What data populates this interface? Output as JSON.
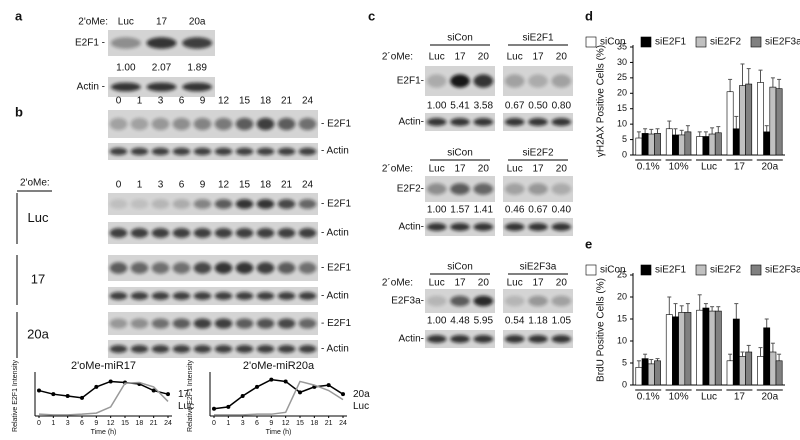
{
  "panel_a": {
    "label": "a",
    "treatment_label": "2'oMe:",
    "lanes": [
      "Luc",
      "17",
      "20a"
    ],
    "blot_labels": [
      "E2F1 -",
      "Actin -"
    ],
    "quantification": [
      "1.00",
      "2.07",
      "1.89"
    ]
  },
  "panel_b": {
    "label": "b",
    "time_points": [
      "0",
      "1",
      "3",
      "6",
      "9",
      "12",
      "15",
      "18",
      "21",
      "24"
    ],
    "top_blot_labels": [
      "- E2F1",
      "- Actin"
    ],
    "treatment_label": "2'oMe:",
    "groups": [
      {
        "name": "Luc",
        "blot_labels": [
          "- E2F1",
          "- Actin"
        ]
      },
      {
        "name": "17",
        "blot_labels": [
          "- E2F1",
          "- Actin"
        ]
      },
      {
        "name": "20a",
        "blot_labels": [
          "- E2F1",
          "- Actin"
        ]
      }
    ]
  },
  "panel_c": {
    "label": "c",
    "sections": [
      {
        "groups": [
          "siCon",
          "siE2F1"
        ],
        "treatment_label": "2´oMe:",
        "lanes": [
          "Luc",
          "17",
          "20",
          "Luc",
          "17",
          "20"
        ],
        "blot_labels": [
          "E2F1-",
          "Actin-"
        ],
        "quantification": [
          "1.00",
          "5.41",
          "3.58",
          "0.67",
          "0.50",
          "0.80"
        ]
      },
      {
        "groups": [
          "siCon",
          "siE2F2"
        ],
        "treatment_label": "2´oMe:",
        "lanes": [
          "Luc",
          "17",
          "20",
          "Luc",
          "17",
          "20"
        ],
        "blot_labels": [
          "E2F2-",
          "Actin-"
        ],
        "quantification": [
          "1.00",
          "1.57",
          "1.41",
          "0.46",
          "0.67",
          "0.40"
        ]
      },
      {
        "groups": [
          "siCon",
          "siE2F3a"
        ],
        "treatment_label": "2´oMe:",
        "lanes": [
          "Luc",
          "17",
          "20",
          "Luc",
          "17",
          "20"
        ],
        "blot_labels": [
          "E2F3a-",
          "Actin-"
        ],
        "quantification": [
          "1.00",
          "4.48",
          "5.95",
          "0.54",
          "1.18",
          "1.05"
        ]
      }
    ]
  },
  "panel_d": {
    "label": "d"
  },
  "panel_e": {
    "label": "e"
  },
  "chart_data": [
    {
      "type": "line",
      "title": "2'oMe-miR17",
      "x_label": "Time (h)",
      "y_label": "Relative E2F1 Intensity",
      "categories": [
        0,
        1,
        3,
        6,
        9,
        12,
        15,
        18,
        21,
        24
      ],
      "ylim": [
        0,
        1.1
      ],
      "series": [
        {
          "name": "17",
          "color": "#000000",
          "marker": true,
          "values": [
            0.7,
            0.6,
            0.55,
            0.5,
            0.8,
            0.95,
            0.92,
            0.88,
            0.7,
            0.6
          ]
        },
        {
          "name": "Luc",
          "color": "#999999",
          "marker": false,
          "values": [
            0.05,
            0.03,
            0.03,
            0.05,
            0.08,
            0.25,
            0.9,
            0.92,
            0.8,
            0.4
          ]
        }
      ]
    },
    {
      "type": "line",
      "title": "2'oMe-miR20a",
      "x_label": "Time (h)",
      "y_label": "Relative E2F1 Intensity",
      "categories": [
        0,
        1,
        3,
        6,
        9,
        12,
        15,
        18,
        21,
        24
      ],
      "ylim": [
        0,
        1.1
      ],
      "series": [
        {
          "name": "20a",
          "color": "#000000",
          "marker": true,
          "values": [
            0.2,
            0.25,
            0.55,
            0.8,
            1.0,
            0.95,
            0.65,
            0.8,
            0.85,
            0.6
          ]
        },
        {
          "name": "Luc",
          "color": "#999999",
          "marker": false,
          "values": [
            0.03,
            0.03,
            0.03,
            0.05,
            0.05,
            0.1,
            0.95,
            0.85,
            0.7,
            0.45
          ]
        }
      ]
    },
    {
      "type": "bar",
      "y_label": "γH2AX Positive Cells (%)",
      "categories": [
        "0.1%",
        "10%",
        "Luc",
        "17",
        "20a"
      ],
      "ylim": [
        0,
        35
      ],
      "yticks": [
        0,
        5,
        10,
        15,
        20,
        25,
        30,
        35
      ],
      "series": [
        {
          "name": "siCon",
          "color": "#ffffff",
          "values": [
            5.5,
            8.5,
            6,
            20.5,
            23.5
          ],
          "errors": [
            2,
            2.5,
            1.5,
            4,
            4
          ]
        },
        {
          "name": "siE2F1",
          "color": "#000000",
          "values": [
            7,
            6.5,
            6,
            8.5,
            7.5
          ],
          "errors": [
            1.5,
            2,
            1.5,
            4,
            2
          ]
        },
        {
          "name": "siE2F2",
          "color": "#c0c0c0",
          "values": [
            6.8,
            6.5,
            6.8,
            22.5,
            22
          ],
          "errors": [
            1.5,
            1.5,
            2,
            7,
            3
          ]
        },
        {
          "name": "siE2F3a",
          "color": "#808080",
          "values": [
            7,
            7.5,
            7.2,
            23,
            21.5
          ],
          "errors": [
            1.5,
            2,
            2,
            5,
            3
          ]
        }
      ]
    },
    {
      "type": "bar",
      "y_label": "BrdU Positive Cells (%)",
      "categories": [
        "0.1%",
        "10%",
        "Luc",
        "17",
        "20a"
      ],
      "ylim": [
        0,
        25
      ],
      "yticks": [
        0,
        5,
        10,
        15,
        20,
        25
      ],
      "series": [
        {
          "name": "siCon",
          "color": "#ffffff",
          "values": [
            4,
            16,
            17,
            5.5,
            6.5
          ],
          "errors": [
            1.5,
            4,
            3.5,
            1.5,
            2
          ]
        },
        {
          "name": "siE2F1",
          "color": "#000000",
          "values": [
            6,
            15.5,
            17.5,
            15,
            13
          ],
          "errors": [
            1,
            3,
            1,
            3.5,
            2
          ]
        },
        {
          "name": "siE2F2",
          "color": "#c0c0c0",
          "values": [
            4.8,
            16.5,
            16.8,
            6.5,
            7.5
          ],
          "errors": [
            1,
            1.5,
            1,
            1,
            2
          ]
        },
        {
          "name": "siE2F3a",
          "color": "#808080",
          "values": [
            5.5,
            16.5,
            16.8,
            7.5,
            5.5
          ],
          "errors": [
            0.5,
            2,
            1,
            1.5,
            1.5
          ]
        }
      ]
    }
  ]
}
